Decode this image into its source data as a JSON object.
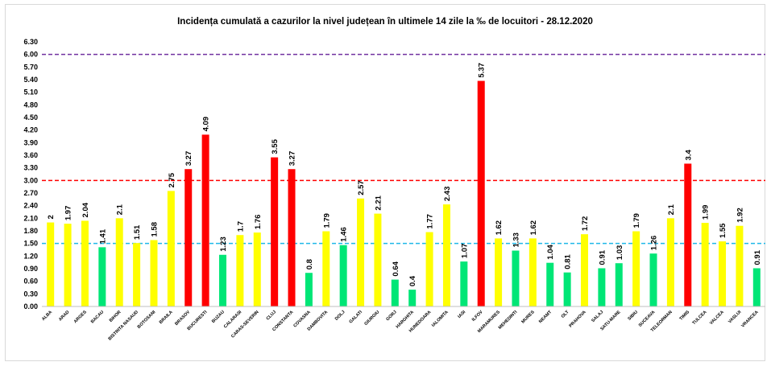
{
  "chart_data": {
    "type": "bar",
    "title": "Incidența cumulată a cazurilor la nivel județean în ultimele 14 zile la ‰ de locuitori - 28.12.2020",
    "xlabel": "",
    "ylabel": "",
    "ylim": [
      0,
      6.3
    ],
    "yticks": [
      "0.00",
      "0.30",
      "0.60",
      "0.90",
      "1.20",
      "1.50",
      "1.80",
      "2.10",
      "2.40",
      "2.70",
      "3.00",
      "3.30",
      "3.60",
      "3.90",
      "4.20",
      "4.50",
      "4.80",
      "5.10",
      "5.40",
      "5.70",
      "6.00",
      "6.30"
    ],
    "grid": false,
    "legend": "none",
    "categories": [
      "ALBA",
      "ARAD",
      "ARGES",
      "BACAU",
      "BIHOR",
      "BISTRITA NASAUD",
      "BOTOSANI",
      "BRAILA",
      "BRASOV",
      "BUCURESTI",
      "BUZAU",
      "CALARASI",
      "CARAS-SEVERIN",
      "CLUJ",
      "CONSTANTA",
      "COVASNA",
      "DAMBOVITA",
      "DOLJ",
      "GALATI",
      "GIURGIU",
      "GORJ",
      "HARGHITA",
      "HUNEDOARA",
      "IALOMITA",
      "IASI",
      "ILFOV",
      "MARAMURES",
      "MEHEDINTI",
      "MURES",
      "NEAMT",
      "OLT",
      "PRAHOVA",
      "SALAJ",
      "SATU-MARE",
      "SIBIU",
      "SUCEAVA",
      "TELEORMAN",
      "TIMIS",
      "TULCEA",
      "VALCEA",
      "VASLUI",
      "VRANCEA"
    ],
    "values": [
      2,
      1.97,
      2.04,
      1.41,
      2.1,
      1.51,
      1.58,
      2.75,
      3.27,
      4.09,
      1.23,
      1.7,
      1.76,
      3.55,
      3.27,
      0.8,
      1.79,
      1.46,
      2.57,
      2.21,
      0.64,
      0.4,
      1.77,
      2.43,
      1.07,
      5.37,
      1.62,
      1.33,
      1.62,
      1.04,
      0.81,
      1.72,
      0.91,
      1.03,
      1.79,
      1.26,
      2.1,
      3.4,
      1.99,
      1.55,
      1.92,
      0.91
    ],
    "value_labels": [
      "2",
      "1.97",
      "2.04",
      "1.41",
      "2.1",
      "1.51",
      "1.58",
      "2.75",
      "3.27",
      "4.09",
      "1.23",
      "1.7",
      "1.76",
      "3.55",
      "3.27",
      "0.8",
      "1.79",
      "1.46",
      "2.57",
      "2.21",
      "0.64",
      "0.4",
      "1.77",
      "2.43",
      "1.07",
      "5.37",
      "1.62",
      "1.33",
      "1.62",
      "1.04",
      "0.81",
      "1.72",
      "0.91",
      "1.03",
      "1.79",
      "1.26",
      "2.1",
      "3.4",
      "1.99",
      "1.55",
      "1.92",
      "0.91"
    ],
    "bar_colors": {
      "green": "#00e676",
      "yellow": "#ffff00",
      "red": "#ff0000"
    },
    "color_rule": "value <= 1.5 green, 1.5 < value <= 3 yellow, value > 3 red",
    "reference_lines": [
      {
        "value": 1.5,
        "color": "#1fb8e8",
        "style": "dashed"
      },
      {
        "value": 3.0,
        "color": "#ff0000",
        "style": "dashed"
      },
      {
        "value": 6.0,
        "color": "#7030a0",
        "style": "dashed"
      }
    ]
  }
}
